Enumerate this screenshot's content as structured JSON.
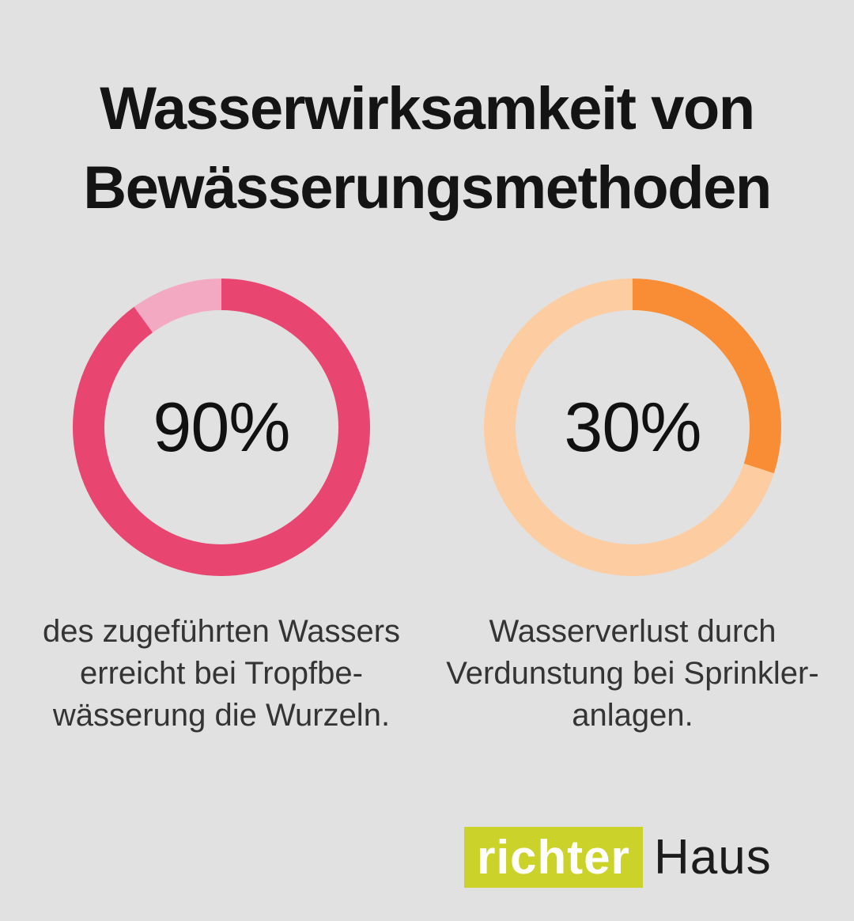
{
  "background_color": "#e0e1e0",
  "title": {
    "lines": [
      "Wasserwirksamkeit von",
      "Bewässerungsmethoden"
    ],
    "color": "#141414"
  },
  "caption_color": "#343434",
  "chart_data": [
    {
      "type": "donut",
      "value_pct": 90,
      "label": "90%",
      "start_angle_deg": 0,
      "direction": "clockwise",
      "filled_color": "#e84571",
      "remainder_color": "#f4a9c2",
      "ring_thickness_px": 40,
      "caption_lines": [
        "des zugeführten Wassers",
        "erreicht bei Tropfbe-",
        "wässerung die Wurzeln."
      ]
    },
    {
      "type": "donut",
      "value_pct": 30,
      "label": "30%",
      "start_angle_deg": 0,
      "direction": "clockwise",
      "filled_color": "#f98d35",
      "remainder_color": "#fdcca0",
      "ring_thickness_px": 40,
      "caption_lines": [
        "Wasserverlust durch",
        "Verdunstung bei Sprinkler-",
        "anlagen."
      ]
    }
  ],
  "logo": {
    "box_text": "richter",
    "box_color": "#cbd32a",
    "box_text_color": "#ffffff",
    "suffix_text": "Haus",
    "suffix_color": "#1c1c1c"
  }
}
